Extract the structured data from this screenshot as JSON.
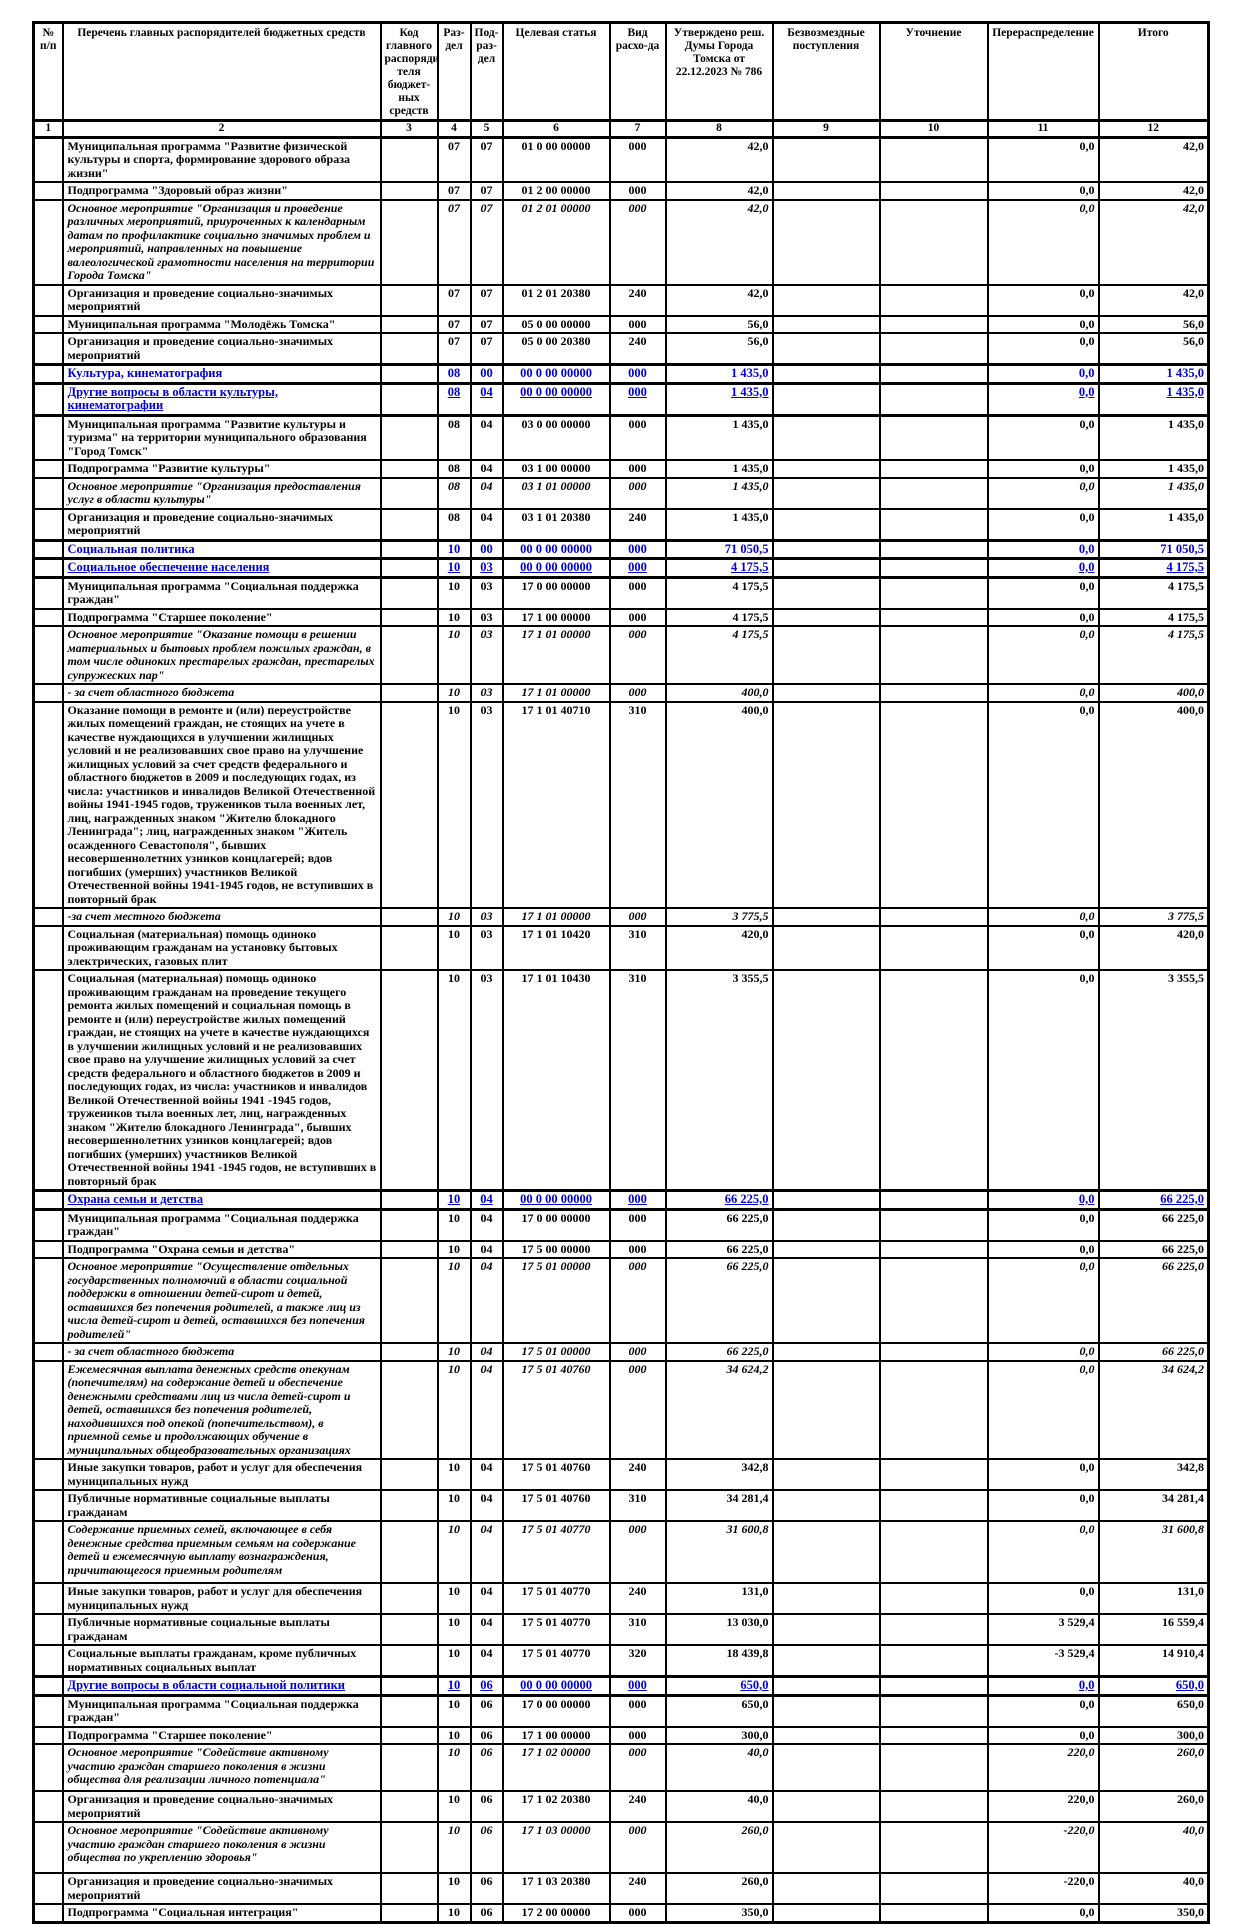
{
  "colors": {
    "section_blue": "#0000d9",
    "line_black": "#000000"
  },
  "table": {
    "columns": [
      "№ п/п",
      "Перечень главных распорядителей бюджетных средств",
      "Код главного распоряди-теля бюджет-ных средств",
      "Раз-дел",
      "Под-раз-дел",
      "Целевая статья",
      "Вид расхо-да",
      "Утверждено реш. Думы Города Томска от 22.12.2023 № 786",
      "Безвозмездные поступления",
      "Уточнение",
      "Перераспределение",
      "Итого"
    ],
    "column_numbers": [
      "1",
      "2",
      "3",
      "4",
      "5",
      "6",
      "7",
      "8",
      "9",
      "10",
      "11",
      "12"
    ],
    "rows": [
      {
        "kind": "normal",
        "name": "Муниципальная программа \"Развитие физической культуры и спорта, формирование здорового образа жизни\"",
        "grbs": "",
        "rd": "07",
        "pr": "07",
        "cs": "01 0 00 00000",
        "vr": "000",
        "approved": "42,0",
        "gratuitous": "",
        "clarification": "",
        "redistribution": "0,0",
        "total": "42,0"
      },
      {
        "kind": "normal",
        "name": "Подпрограмма \"Здоровый образ жизни\"",
        "grbs": "",
        "rd": "07",
        "pr": "07",
        "cs": "01 2 00 00000",
        "vr": "000",
        "approved": "42,0",
        "gratuitous": "",
        "clarification": "",
        "redistribution": "0,0",
        "total": "42,0"
      },
      {
        "kind": "italic",
        "name": "Основное мероприятие \"Организация и проведение различных мероприятий, приуроченных к календарным датам по профилактике социально значимых проблем и мероприятий, направленных на повышение валеологической грамотности населения на территории Города Томска\"",
        "grbs": "",
        "rd": "07",
        "pr": "07",
        "cs": "01 2 01 00000",
        "vr": "000",
        "approved": "42,0",
        "gratuitous": "",
        "clarification": "",
        "redistribution": "0,0",
        "total": "42,0"
      },
      {
        "kind": "normal",
        "name": "Организация и проведение социально-значимых мероприятий",
        "grbs": "",
        "rd": "07",
        "pr": "07",
        "cs": "01 2 01 20380",
        "vr": "240",
        "approved": "42,0",
        "gratuitous": "",
        "clarification": "",
        "redistribution": "0,0",
        "total": "42,0"
      },
      {
        "kind": "normal",
        "name": "Муниципальная программа \"Молодёжь Томска\"",
        "grbs": "",
        "rd": "07",
        "pr": "07",
        "cs": "05 0 00 00000",
        "vr": "000",
        "approved": "56,0",
        "gratuitous": "",
        "clarification": "",
        "redistribution": "0,0",
        "total": "56,0"
      },
      {
        "kind": "normal",
        "name": "Организация и проведение социально-значимых мероприятий",
        "grbs": "",
        "rd": "07",
        "pr": "07",
        "cs": "05 0 00 20380",
        "vr": "240",
        "approved": "56,0",
        "gratuitous": "",
        "clarification": "",
        "redistribution": "0,0",
        "total": "56,0"
      },
      {
        "kind": "section",
        "name": "Культура, кинематография",
        "grbs": "",
        "rd": "08",
        "pr": "00",
        "cs": "00 0 00 00000",
        "vr": "000",
        "approved": "1 435,0",
        "gratuitous": "",
        "clarification": "",
        "redistribution": "0,0",
        "total": "1 435,0"
      },
      {
        "kind": "subsection",
        "name": "Другие вопросы в области культуры, кинематографии",
        "grbs": "",
        "rd": "08",
        "pr": "04",
        "cs": "00 0 00 00000",
        "vr": "000",
        "approved": "1 435,0",
        "gratuitous": "",
        "clarification": "",
        "redistribution": "0,0",
        "total": "1 435,0"
      },
      {
        "kind": "normal",
        "name": "Муниципальная программа \"Развитие культуры и туризма\" на территории муниципального образования \"Город Томск\"",
        "grbs": "",
        "rd": "08",
        "pr": "04",
        "cs": "03 0 00 00000",
        "vr": "000",
        "approved": "1 435,0",
        "gratuitous": "",
        "clarification": "",
        "redistribution": "0,0",
        "total": "1 435,0"
      },
      {
        "kind": "normal",
        "name": "Подпрограмма \"Развитие культуры\"",
        "grbs": "",
        "rd": "08",
        "pr": "04",
        "cs": "03 1 00 00000",
        "vr": "000",
        "approved": "1 435,0",
        "gratuitous": "",
        "clarification": "",
        "redistribution": "0,0",
        "total": "1 435,0"
      },
      {
        "kind": "italic",
        "name": "Основное мероприятие \"Организация предоставления услуг в области культуры\"",
        "grbs": "",
        "rd": "08",
        "pr": "04",
        "cs": "03 1 01 00000",
        "vr": "000",
        "approved": "1 435,0",
        "gratuitous": "",
        "clarification": "",
        "redistribution": "0,0",
        "total": "1 435,0"
      },
      {
        "kind": "normal",
        "name": "Организация и проведение социально-значимых мероприятий",
        "grbs": "",
        "rd": "08",
        "pr": "04",
        "cs": "03 1 01 20380",
        "vr": "240",
        "approved": "1 435,0",
        "gratuitous": "",
        "clarification": "",
        "redistribution": "0,0",
        "total": "1 435,0"
      },
      {
        "kind": "section",
        "name": "Социальная политика",
        "grbs": "",
        "rd": "10",
        "pr": "00",
        "cs": "00 0 00 00000",
        "vr": "000",
        "approved": "71 050,5",
        "gratuitous": "",
        "clarification": "",
        "redistribution": "0,0",
        "total": "71 050,5"
      },
      {
        "kind": "subsection",
        "name": "Социальное обеспечение населения",
        "grbs": "",
        "rd": "10",
        "pr": "03",
        "cs": "00 0 00 00000",
        "vr": "000",
        "approved": "4 175,5",
        "gratuitous": "",
        "clarification": "",
        "redistribution": "0,0",
        "total": "4 175,5"
      },
      {
        "kind": "normal",
        "name": "Муниципальная программа \"Социальная поддержка граждан\"",
        "grbs": "",
        "rd": "10",
        "pr": "03",
        "cs": "17 0 00 00000",
        "vr": "000",
        "approved": "4 175,5",
        "gratuitous": "",
        "clarification": "",
        "redistribution": "0,0",
        "total": "4 175,5"
      },
      {
        "kind": "normal",
        "name": "Подпрограмма \"Старшее поколение\"",
        "grbs": "",
        "rd": "10",
        "pr": "03",
        "cs": "17 1 00 00000",
        "vr": "000",
        "approved": "4 175,5",
        "gratuitous": "",
        "clarification": "",
        "redistribution": "0,0",
        "total": "4 175,5"
      },
      {
        "kind": "italic",
        "name": "Основное мероприятие \"Оказание помощи в решении материальных и бытовых проблем пожилых граждан, в том числе одиноких престарелых граждан, престарелых супружеских пар\"",
        "grbs": "",
        "rd": "10",
        "pr": "03",
        "cs": "17 1 01 00000",
        "vr": "000",
        "approved": "4 175,5",
        "gratuitous": "",
        "clarification": "",
        "redistribution": "0,0",
        "total": "4 175,5"
      },
      {
        "kind": "italic",
        "name": "- за счет областного бюджета",
        "grbs": "",
        "rd": "10",
        "pr": "03",
        "cs": "17 1 01 00000",
        "vr": "000",
        "approved": "400,0",
        "gratuitous": "",
        "clarification": "",
        "redistribution": "0,0",
        "total": "400,0"
      },
      {
        "kind": "normal",
        "name": "Оказание помощи в ремонте и (или) переустройстве жилых помещений граждан, не стоящих на учете в качестве нуждающихся в улучшении жилищных условий и не реализовавших свое право на улучшение жилищных условий за счет средств федерального и областного бюджетов в 2009 и последующих годах, из числа: участников и инвалидов Великой Отечественной войны 1941-1945 годов, тружеников тыла военных лет, лиц, награжденных знаком \"Жителю блокадного Ленинграда\"; лиц, награжденных знаком \"Житель осажденного Севастополя\", бывших несовершеннолетних узников концлагерей; вдов погибших (умерших) участников Великой Отечественной войны 1941-1945 годов, не вступивших в повторный брак",
        "grbs": "",
        "rd": "10",
        "pr": "03",
        "cs": "17 1 01 40710",
        "vr": "310",
        "approved": "400,0",
        "gratuitous": "",
        "clarification": "",
        "redistribution": "0,0",
        "total": "400,0"
      },
      {
        "kind": "italic",
        "name": "-за счет местного бюджета",
        "grbs": "",
        "rd": "10",
        "pr": "03",
        "cs": "17 1 01 00000",
        "vr": "000",
        "approved": "3 775,5",
        "gratuitous": "",
        "clarification": "",
        "redistribution": "0,0",
        "total": "3 775,5"
      },
      {
        "kind": "normal",
        "name": "Социальная (материальная) помощь одиноко проживающим гражданам на установку бытовых электрических, газовых плит",
        "grbs": "",
        "rd": "10",
        "pr": "03",
        "cs": "17 1 01 10420",
        "vr": "310",
        "approved": "420,0",
        "gratuitous": "",
        "clarification": "",
        "redistribution": "0,0",
        "total": "420,0"
      },
      {
        "kind": "normal",
        "name": "Социальная (материальная) помощь одиноко проживающим гражданам на проведение текущего ремонта жилых помещений и социальная помощь в ремонте и (или) переустройстве жилых помещений граждан, не стоящих на учете в качестве нуждающихся в улучшении жилищных условий и не реализовавших свое право на улучшение жилищных условий за счет средств федерального и областного бюджетов в 2009 и последующих годах, из числа: участников и инвалидов Великой Отечественной войны 1941 -1945 годов, тружеников тыла военных лет, лиц, награжденных знаком \"Жителю блокадного Ленинграда\", бывших несовершеннолетних узников концлагерей; вдов погибших (умерших) участников Великой Отечественной войны 1941 -1945 годов, не вступивших в повторный брак",
        "grbs": "",
        "rd": "10",
        "pr": "03",
        "cs": "17 1 01 10430",
        "vr": "310",
        "approved": "3 355,5",
        "gratuitous": "",
        "clarification": "",
        "redistribution": "0,0",
        "total": "3 355,5"
      },
      {
        "kind": "subsection",
        "name": "Охрана семьи и детства",
        "grbs": "",
        "rd": "10",
        "pr": "04",
        "cs": "00 0 00 00000",
        "vr": "000",
        "approved": "66 225,0",
        "gratuitous": "",
        "clarification": "",
        "redistribution": "0,0",
        "total": "66 225,0"
      },
      {
        "kind": "normal",
        "name": "Муниципальная программа \"Социальная поддержка граждан\"",
        "grbs": "",
        "rd": "10",
        "pr": "04",
        "cs": "17 0 00 00000",
        "vr": "000",
        "approved": "66 225,0",
        "gratuitous": "",
        "clarification": "",
        "redistribution": "0,0",
        "total": "66 225,0"
      },
      {
        "kind": "normal",
        "name": "Подпрограмма \"Охрана семьи и детства\"",
        "grbs": "",
        "rd": "10",
        "pr": "04",
        "cs": "17 5 00 00000",
        "vr": "000",
        "approved": "66 225,0",
        "gratuitous": "",
        "clarification": "",
        "redistribution": "0,0",
        "total": "66 225,0"
      },
      {
        "kind": "italic",
        "name": "Основное мероприятие \"Осуществление отдельных государственных полномочий в области социальной поддержки в отношении детей-сирот и детей, оставшихся без попечения родителей, а также лиц из числа детей-сирот и детей, оставшихся без попечения родителей\"",
        "grbs": "",
        "rd": "10",
        "pr": "04",
        "cs": "17 5 01 00000",
        "vr": "000",
        "approved": "66 225,0",
        "gratuitous": "",
        "clarification": "",
        "redistribution": "0,0",
        "total": "66 225,0"
      },
      {
        "kind": "italic",
        "name": "- за счет областного бюджета",
        "grbs": "",
        "rd": "10",
        "pr": "04",
        "cs": "17 5 01 00000",
        "vr": "000",
        "approved": "66 225,0",
        "gratuitous": "",
        "clarification": "",
        "redistribution": "0,0",
        "total": "66 225,0"
      },
      {
        "kind": "italic",
        "name": "Ежемесячная выплата денежных средств опекунам (попечителям) на содержание детей и обеспечение денежными средствами лиц из числа детей-сирот и детей, оставшихся без попечения родителей, находившихся под опекой (попечительством), в приемной семье и продолжающих обучение в муниципальных общеобразовательных организациях",
        "grbs": "",
        "rd": "10",
        "pr": "04",
        "cs": "17 5 01 40760",
        "vr": "000",
        "approved": "34 624,2",
        "gratuitous": "",
        "clarification": "",
        "redistribution": "0,0",
        "total": "34 624,2"
      },
      {
        "kind": "normal",
        "name": "Иные закупки товаров, работ и услуг для обеспечения муниципальных нужд",
        "grbs": "",
        "rd": "10",
        "pr": "04",
        "cs": "17 5 01 40760",
        "vr": "240",
        "approved": "342,8",
        "gratuitous": "",
        "clarification": "",
        "redistribution": "0,0",
        "total": "342,8"
      },
      {
        "kind": "normal",
        "name": "Публичные нормативные социальные выплаты гражданам",
        "grbs": "",
        "rd": "10",
        "pr": "04",
        "cs": "17 5 01 40760",
        "vr": "310",
        "approved": "34 281,4",
        "gratuitous": "",
        "clarification": "",
        "redistribution": "0,0",
        "total": "34 281,4"
      },
      {
        "kind": "italic",
        "name": "Содержание приемных семей, включающее в себя денежные средства приемным семьям на содержание детей и ежемесячную выплату вознаграждения, причитающегося приемным родителям",
        "grbs": "",
        "rd": "10",
        "pr": "04",
        "cs": "17 5 01 40770",
        "vr": "000",
        "approved": "31 600,8",
        "gratuitous": "",
        "clarification": "",
        "redistribution": "0,0",
        "total": "31 600,8"
      },
      {
        "kind": "normal",
        "name": "Иные закупки товаров, работ и услуг для обеспечения муниципальных нужд",
        "grbs": "",
        "rd": "10",
        "pr": "04",
        "cs": "17 5 01 40770",
        "vr": "240",
        "approved": "131,0",
        "gratuitous": "",
        "clarification": "",
        "redistribution": "0,0",
        "total": "131,0"
      },
      {
        "kind": "normal",
        "name": "Публичные нормативные социальные выплаты гражданам",
        "grbs": "",
        "rd": "10",
        "pr": "04",
        "cs": "17 5 01 40770",
        "vr": "310",
        "approved": "13 030,0",
        "gratuitous": "",
        "clarification": "",
        "redistribution": "3 529,4",
        "total": "16 559,4"
      },
      {
        "kind": "normal",
        "name": "Социальные выплаты гражданам, кроме публичных нормативных социальных выплат",
        "grbs": "",
        "rd": "10",
        "pr": "04",
        "cs": "17 5 01 40770",
        "vr": "320",
        "approved": "18 439,8",
        "gratuitous": "",
        "clarification": "",
        "redistribution": "-3 529,4",
        "total": "14 910,4"
      },
      {
        "kind": "subsection",
        "name": "Другие вопросы в области социальной политики",
        "grbs": "",
        "rd": "10",
        "pr": "06",
        "cs": "00 0 00 00000",
        "vr": "000",
        "approved": "650,0",
        "gratuitous": "",
        "clarification": "",
        "redistribution": "0,0",
        "total": "650,0"
      },
      {
        "kind": "normal",
        "name": "Муниципальная программа \"Социальная поддержка граждан\"",
        "grbs": "",
        "rd": "10",
        "pr": "06",
        "cs": "17 0 00 00000",
        "vr": "000",
        "approved": "650,0",
        "gratuitous": "",
        "clarification": "",
        "redistribution": "0,0",
        "total": "650,0"
      },
      {
        "kind": "normal",
        "name": "Подпрограмма \"Старшее поколение\"",
        "grbs": "",
        "rd": "10",
        "pr": "06",
        "cs": "17 1 00 00000",
        "vr": "000",
        "approved": "300,0",
        "gratuitous": "",
        "clarification": "",
        "redistribution": "0,0",
        "total": "300,0"
      },
      {
        "kind": "italic",
        "name": "Основное мероприятие \"Содействие активному участию граждан старшего поколения в жизни общества для реализации личного потенциала\"",
        "grbs": "",
        "rd": "10",
        "pr": "06",
        "cs": "17 1 02 00000",
        "vr": "000",
        "approved": "40,0",
        "gratuitous": "",
        "clarification": "",
        "redistribution": "220,0",
        "total": "260,0"
      },
      {
        "kind": "normal",
        "name": "Организация и проведение социально-значимых мероприятий",
        "grbs": "",
        "rd": "10",
        "pr": "06",
        "cs": "17 1 02 20380",
        "vr": "240",
        "approved": "40,0",
        "gratuitous": "",
        "clarification": "",
        "redistribution": "220,0",
        "total": "260,0"
      },
      {
        "kind": "italic",
        "name": "Основное мероприятие \"Содействие активному участию граждан старшего поколения в жизни общества по укреплению здоровья\"",
        "grbs": "",
        "rd": "10",
        "pr": "06",
        "cs": "17 1 03 00000",
        "vr": "000",
        "approved": "260,0",
        "gratuitous": "",
        "clarification": "",
        "redistribution": "-220,0",
        "total": "40,0"
      },
      {
        "kind": "normal",
        "name": "Организация и проведение социально-значимых мероприятий",
        "grbs": "",
        "rd": "10",
        "pr": "06",
        "cs": "17 1 03 20380",
        "vr": "240",
        "approved": "260,0",
        "gratuitous": "",
        "clarification": "",
        "redistribution": "-220,0",
        "total": "40,0"
      },
      {
        "kind": "normal",
        "name": "Подпрограмма \"Социальная интеграция\"",
        "grbs": "",
        "rd": "10",
        "pr": "06",
        "cs": "17 2 00 00000",
        "vr": "000",
        "approved": "350,0",
        "gratuitous": "",
        "clarification": "",
        "redistribution": "0,0",
        "total": "350,0"
      }
    ]
  }
}
